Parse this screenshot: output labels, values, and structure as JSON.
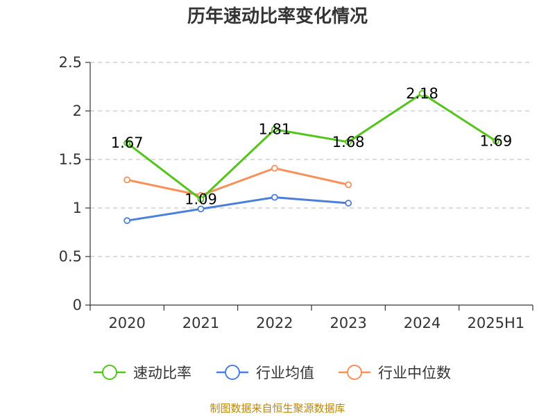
{
  "chart_data": {
    "type": "line",
    "title": "历年速动比率变化情况",
    "xlabel": "",
    "ylabel": "",
    "categories": [
      "2020",
      "2021",
      "2022",
      "2023",
      "2024",
      "2025H1"
    ],
    "ylim": [
      0,
      2.5
    ],
    "yticks": [
      "0",
      "0.5",
      "1",
      "1.5",
      "2",
      "2.5"
    ],
    "grid": true,
    "legend_position": "bottom",
    "series": [
      {
        "name": "速动比率",
        "color": "#52c41a",
        "values": [
          1.67,
          1.09,
          1.81,
          1.68,
          2.18,
          1.69
        ],
        "labels": [
          "1.67",
          "1.09",
          "1.81",
          "1.68",
          "2.18",
          "1.69"
        ]
      },
      {
        "name": "行业均值",
        "color": "#4a7fdc",
        "values": [
          0.87,
          0.99,
          1.11,
          1.05,
          null,
          null
        ]
      },
      {
        "name": "行业中位数",
        "color": "#f79059",
        "values": [
          1.29,
          1.13,
          1.41,
          1.24,
          null,
          null
        ]
      }
    ]
  },
  "footer": {
    "source": "制图数据来自恒生聚源数据库"
  }
}
